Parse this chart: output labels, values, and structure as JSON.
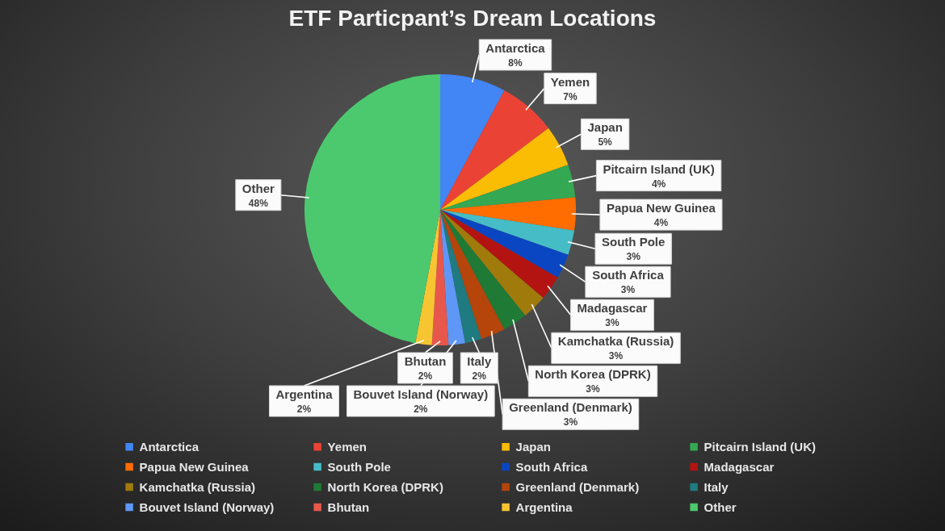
{
  "chart_data": {
    "type": "pie",
    "title": "ETF Particpant’s Dream Locations",
    "categories": [
      "Antarctica",
      "Yemen",
      "Japan",
      "Pitcairn Island (UK)",
      "Papua New Guinea",
      "South Pole",
      "South Africa",
      "Madagascar",
      "Kamchatka (Russia)",
      "North Korea (DPRK)",
      "Greenland (Denmark)",
      "Italy",
      "Bouvet Island (Norway)",
      "Bhutan",
      "Argentina",
      "Other"
    ],
    "values": [
      8,
      7,
      5,
      4,
      4,
      3,
      3,
      3,
      3,
      3,
      3,
      2,
      2,
      2,
      2,
      48
    ],
    "value_labels": [
      "8%",
      "7%",
      "5%",
      "4%",
      "4%",
      "3%",
      "3%",
      "3%",
      "3%",
      "3%",
      "3%",
      "2%",
      "2%",
      "2%",
      "2%",
      "48%"
    ],
    "colors": [
      "#4285f4",
      "#ea4335",
      "#fbbc04",
      "#34a853",
      "#ff6d01",
      "#46bdc6",
      "#0b46c2",
      "#b31412",
      "#a07a0a",
      "#1e7a34",
      "#b5450b",
      "#1f7b80",
      "#5e97f6",
      "#e8574c",
      "#f7c531",
      "#4cc96e"
    ],
    "legend": "bottom"
  }
}
